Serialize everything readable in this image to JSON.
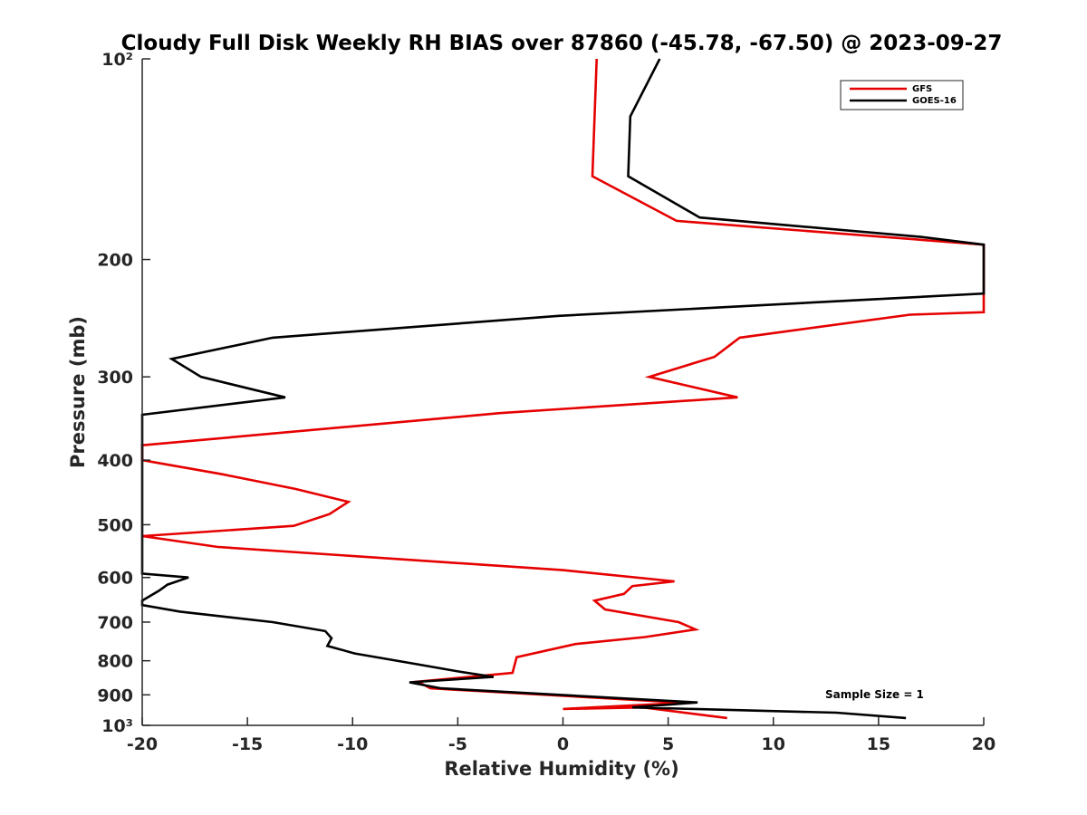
{
  "chart_data": {
    "type": "line",
    "title": "Cloudy Full Disk Weekly RH BIAS over 87860 (-45.78, -67.50) @ 2023-09-27",
    "xlabel": "Relative Humidity (%)",
    "ylabel": "Pressure (mb)",
    "xlim": [
      -20,
      20
    ],
    "ylim": [
      100,
      1000
    ],
    "y_scale": "log",
    "y_reversed": true,
    "grid": false,
    "legend_position": "top-right",
    "x_ticks": [
      -20,
      -15,
      -10,
      -5,
      0,
      5,
      10,
      15,
      20
    ],
    "x_tick_labels": [
      "-20",
      "-15",
      "-10",
      "-5",
      "0",
      "5",
      "10",
      "15",
      "20"
    ],
    "y_ticks": [
      100,
      200,
      300,
      400,
      500,
      600,
      700,
      800,
      900,
      1000
    ],
    "y_tick_labels": [
      "10²",
      "200",
      "300",
      "400",
      "500",
      "600",
      "700",
      "800",
      "900",
      "10³"
    ],
    "annotation": "Sample Size = 1",
    "series": [
      {
        "name": "GFS",
        "color": "#e60000",
        "points": [
          [
            1.6,
            100
          ],
          [
            1.4,
            150
          ],
          [
            5.4,
            175
          ],
          [
            20,
            190
          ],
          [
            20,
            240
          ],
          [
            16.5,
            242
          ],
          [
            8.4,
            262
          ],
          [
            7.2,
            280
          ],
          [
            4.1,
            300
          ],
          [
            8.3,
            322
          ],
          [
            -3,
            340
          ],
          [
            -20,
            380
          ],
          [
            -20,
            400
          ],
          [
            -16.2,
            420
          ],
          [
            -12.7,
            442
          ],
          [
            -10.2,
            462
          ],
          [
            -11.1,
            482
          ],
          [
            -12.8,
            502
          ],
          [
            -20,
            520
          ],
          [
            -16.4,
            540
          ],
          [
            0,
            585
          ],
          [
            5.3,
            608
          ],
          [
            3.3,
            618
          ],
          [
            2.9,
            635
          ],
          [
            1.5,
            650
          ],
          [
            2,
            670
          ],
          [
            5.5,
            700
          ],
          [
            6.3,
            718
          ],
          [
            3.9,
            737
          ],
          [
            0.6,
            755
          ],
          [
            -2.2,
            790
          ],
          [
            -2.4,
            834
          ],
          [
            -6.9,
            860
          ],
          [
            -6.3,
            880
          ],
          [
            5.8,
            925
          ],
          [
            0,
            945
          ],
          [
            3.8,
            940
          ],
          [
            7.8,
            975
          ]
        ]
      },
      {
        "name": "GOES-16",
        "color": "#000000",
        "points": [
          [
            4.6,
            100
          ],
          [
            3.2,
            122
          ],
          [
            3.1,
            150
          ],
          [
            6.5,
            173
          ],
          [
            17,
            185
          ],
          [
            20,
            190
          ],
          [
            20,
            225
          ],
          [
            16.5,
            228
          ],
          [
            -0.2,
            243
          ],
          [
            -13.8,
            262
          ],
          [
            -18.6,
            282
          ],
          [
            -17.2,
            300
          ],
          [
            -13.2,
            322
          ],
          [
            -20,
            342
          ],
          [
            -20,
            592
          ],
          [
            -17.8,
            600
          ],
          [
            -18.8,
            615
          ],
          [
            -19.2,
            628
          ],
          [
            -20,
            650
          ],
          [
            -20,
            660
          ],
          [
            -18.2,
            675
          ],
          [
            -13.8,
            700
          ],
          [
            -11.3,
            722
          ],
          [
            -11.0,
            740
          ],
          [
            -11.2,
            760
          ],
          [
            -9.9,
            780
          ],
          [
            -6.9,
            810
          ],
          [
            -5.0,
            830
          ],
          [
            -3.3,
            846
          ],
          [
            -7.3,
            862
          ],
          [
            -5.8,
            880
          ],
          [
            6.4,
            924
          ],
          [
            3.3,
            940
          ],
          [
            13,
            957
          ],
          [
            16.3,
            975
          ]
        ]
      }
    ]
  }
}
